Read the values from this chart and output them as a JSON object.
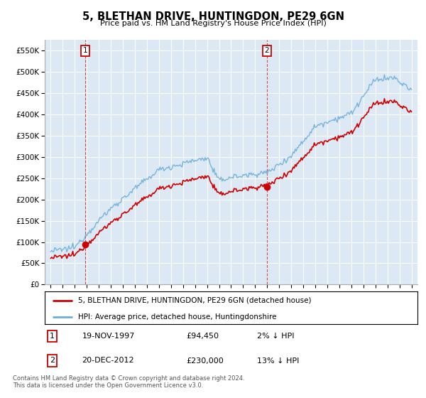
{
  "title": "5, BLETHAN DRIVE, HUNTINGDON, PE29 6GN",
  "subtitle": "Price paid vs. HM Land Registry's House Price Index (HPI)",
  "legend_line1": "5, BLETHAN DRIVE, HUNTINGDON, PE29 6GN (detached house)",
  "legend_line2": "HPI: Average price, detached house, Huntingdonshire",
  "annotation1_date": "19-NOV-1997",
  "annotation1_price": "£94,450",
  "annotation1_hpi": "2% ↓ HPI",
  "annotation2_date": "20-DEC-2012",
  "annotation2_price": "£230,000",
  "annotation2_hpi": "13% ↓ HPI",
  "footer": "Contains HM Land Registry data © Crown copyright and database right 2024.\nThis data is licensed under the Open Government Licence v3.0.",
  "sale1_x": 1997.89,
  "sale1_y": 94450,
  "sale2_x": 2012.97,
  "sale2_y": 230000,
  "hpi_color": "#6baed6",
  "price_color": "#cc0000",
  "plot_bg_color": "#dce9f5",
  "ylim": [
    0,
    575000
  ],
  "xlim": [
    1994.5,
    2025.5
  ],
  "yticks": [
    0,
    50000,
    100000,
    150000,
    200000,
    250000,
    300000,
    350000,
    400000,
    450000,
    500000,
    550000
  ],
  "ytick_labels": [
    "£0",
    "£50K",
    "£100K",
    "£150K",
    "£200K",
    "£250K",
    "£300K",
    "£350K",
    "£400K",
    "£450K",
    "£500K",
    "£550K"
  ],
  "xticks": [
    1995,
    1996,
    1997,
    1998,
    1999,
    2000,
    2001,
    2002,
    2003,
    2004,
    2005,
    2006,
    2007,
    2008,
    2009,
    2010,
    2011,
    2012,
    2013,
    2014,
    2015,
    2016,
    2017,
    2018,
    2019,
    2020,
    2021,
    2022,
    2023,
    2024,
    2025
  ]
}
